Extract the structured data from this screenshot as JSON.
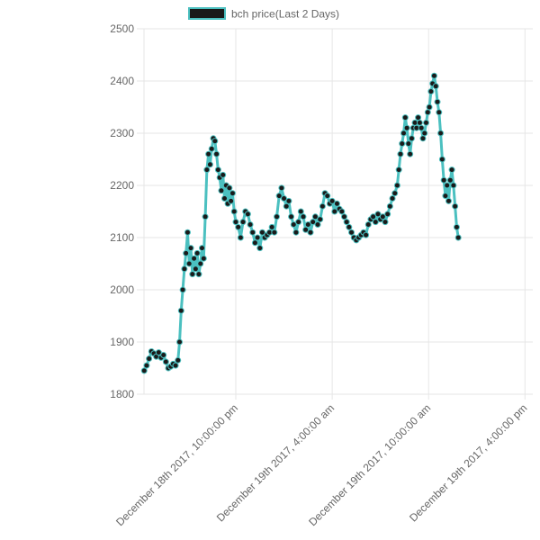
{
  "chart_data": {
    "type": "line",
    "legend": {
      "label": "bch price(Last 2 Days)",
      "position": "top"
    },
    "colors": {
      "line": "#4bc0c0",
      "point_fill": "#1a1a1a",
      "point_border": "#4bc0c0",
      "grid": "#e6e6e6",
      "legend_box": "#1a1a1a"
    },
    "ylim": [
      1800,
      2500
    ],
    "y_ticks": [
      1800,
      1900,
      2000,
      2100,
      2200,
      2300,
      2400,
      2500
    ],
    "x_ticks": [
      {
        "label": "December 18th 2017, 10:00:00 pm",
        "hours": 0
      },
      {
        "label": "December 19th 2017, 4:00:00 am",
        "hours": 6
      },
      {
        "label": "December 19th 2017, 10:00:00 am",
        "hours": 12
      },
      {
        "label": "December 19th 2017, 4:00:00 pm",
        "hours": 18
      }
    ],
    "xlim_hours": [
      -5.7,
      18.3
    ],
    "grid": true,
    "series": [
      {
        "name": "bch price(Last 2 Days)",
        "points": [
          [
            -5.7,
            1845
          ],
          [
            -5.55,
            1855
          ],
          [
            -5.4,
            1868
          ],
          [
            -5.25,
            1882
          ],
          [
            -5.1,
            1878
          ],
          [
            -4.95,
            1872
          ],
          [
            -4.8,
            1880
          ],
          [
            -4.65,
            1870
          ],
          [
            -4.5,
            1875
          ],
          [
            -4.35,
            1862
          ],
          [
            -4.2,
            1850
          ],
          [
            -4.05,
            1853
          ],
          [
            -3.9,
            1858
          ],
          [
            -3.75,
            1855
          ],
          [
            -3.6,
            1865
          ],
          [
            -3.5,
            1900
          ],
          [
            -3.4,
            1960
          ],
          [
            -3.3,
            2000
          ],
          [
            -3.2,
            2040
          ],
          [
            -3.1,
            2070
          ],
          [
            -3.0,
            2110
          ],
          [
            -2.9,
            2050
          ],
          [
            -2.8,
            2080
          ],
          [
            -2.7,
            2030
          ],
          [
            -2.6,
            2060
          ],
          [
            -2.5,
            2040
          ],
          [
            -2.4,
            2070
          ],
          [
            -2.3,
            2030
          ],
          [
            -2.2,
            2050
          ],
          [
            -2.1,
            2080
          ],
          [
            -2.0,
            2060
          ],
          [
            -1.9,
            2140
          ],
          [
            -1.8,
            2230
          ],
          [
            -1.7,
            2260
          ],
          [
            -1.6,
            2240
          ],
          [
            -1.5,
            2270
          ],
          [
            -1.4,
            2290
          ],
          [
            -1.3,
            2285
          ],
          [
            -1.2,
            2260
          ],
          [
            -1.1,
            2230
          ],
          [
            -1.0,
            2215
          ],
          [
            -0.9,
            2190
          ],
          [
            -0.8,
            2220
          ],
          [
            -0.7,
            2175
          ],
          [
            -0.6,
            2200
          ],
          [
            -0.5,
            2165
          ],
          [
            -0.4,
            2195
          ],
          [
            -0.3,
            2170
          ],
          [
            -0.2,
            2185
          ],
          [
            -0.1,
            2150
          ],
          [
            0.0,
            2130
          ],
          [
            0.15,
            2120
          ],
          [
            0.3,
            2100
          ],
          [
            0.45,
            2130
          ],
          [
            0.6,
            2150
          ],
          [
            0.75,
            2145
          ],
          [
            0.9,
            2125
          ],
          [
            1.05,
            2110
          ],
          [
            1.2,
            2090
          ],
          [
            1.35,
            2100
          ],
          [
            1.5,
            2080
          ],
          [
            1.65,
            2110
          ],
          [
            1.8,
            2100
          ],
          [
            1.95,
            2105
          ],
          [
            2.1,
            2110
          ],
          [
            2.25,
            2120
          ],
          [
            2.4,
            2110
          ],
          [
            2.55,
            2140
          ],
          [
            2.7,
            2180
          ],
          [
            2.85,
            2195
          ],
          [
            3.0,
            2175
          ],
          [
            3.15,
            2160
          ],
          [
            3.3,
            2170
          ],
          [
            3.45,
            2140
          ],
          [
            3.6,
            2125
          ],
          [
            3.75,
            2110
          ],
          [
            3.9,
            2130
          ],
          [
            4.05,
            2150
          ],
          [
            4.2,
            2140
          ],
          [
            4.35,
            2115
          ],
          [
            4.5,
            2125
          ],
          [
            4.65,
            2110
          ],
          [
            4.8,
            2130
          ],
          [
            4.95,
            2140
          ],
          [
            5.1,
            2125
          ],
          [
            5.25,
            2135
          ],
          [
            5.4,
            2160
          ],
          [
            5.55,
            2185
          ],
          [
            5.7,
            2180
          ],
          [
            5.85,
            2165
          ],
          [
            6.0,
            2170
          ],
          [
            6.15,
            2150
          ],
          [
            6.3,
            2165
          ],
          [
            6.45,
            2155
          ],
          [
            6.6,
            2150
          ],
          [
            6.75,
            2140
          ],
          [
            6.9,
            2130
          ],
          [
            7.05,
            2120
          ],
          [
            7.2,
            2110
          ],
          [
            7.35,
            2100
          ],
          [
            7.5,
            2095
          ],
          [
            7.65,
            2100
          ],
          [
            7.8,
            2105
          ],
          [
            7.95,
            2110
          ],
          [
            8.1,
            2105
          ],
          [
            8.25,
            2125
          ],
          [
            8.4,
            2135
          ],
          [
            8.55,
            2140
          ],
          [
            8.7,
            2130
          ],
          [
            8.85,
            2145
          ],
          [
            9.0,
            2135
          ],
          [
            9.15,
            2140
          ],
          [
            9.3,
            2130
          ],
          [
            9.45,
            2145
          ],
          [
            9.6,
            2160
          ],
          [
            9.75,
            2175
          ],
          [
            9.9,
            2185
          ],
          [
            10.05,
            2200
          ],
          [
            10.15,
            2230
          ],
          [
            10.25,
            2260
          ],
          [
            10.35,
            2280
          ],
          [
            10.45,
            2300
          ],
          [
            10.55,
            2330
          ],
          [
            10.65,
            2310
          ],
          [
            10.75,
            2280
          ],
          [
            10.85,
            2260
          ],
          [
            10.95,
            2290
          ],
          [
            11.05,
            2310
          ],
          [
            11.15,
            2320
          ],
          [
            11.25,
            2310
          ],
          [
            11.35,
            2330
          ],
          [
            11.45,
            2320
          ],
          [
            11.55,
            2310
          ],
          [
            11.65,
            2290
          ],
          [
            11.75,
            2300
          ],
          [
            11.85,
            2320
          ],
          [
            11.95,
            2340
          ],
          [
            12.05,
            2350
          ],
          [
            12.15,
            2380
          ],
          [
            12.25,
            2395
          ],
          [
            12.35,
            2410
          ],
          [
            12.45,
            2390
          ],
          [
            12.55,
            2360
          ],
          [
            12.65,
            2340
          ],
          [
            12.75,
            2300
          ],
          [
            12.85,
            2250
          ],
          [
            12.95,
            2210
          ],
          [
            13.05,
            2180
          ],
          [
            13.15,
            2200
          ],
          [
            13.25,
            2170
          ],
          [
            13.35,
            2210
          ],
          [
            13.45,
            2230
          ],
          [
            13.55,
            2200
          ],
          [
            13.65,
            2160
          ],
          [
            13.75,
            2120
          ],
          [
            13.85,
            2100
          ]
        ]
      }
    ]
  }
}
